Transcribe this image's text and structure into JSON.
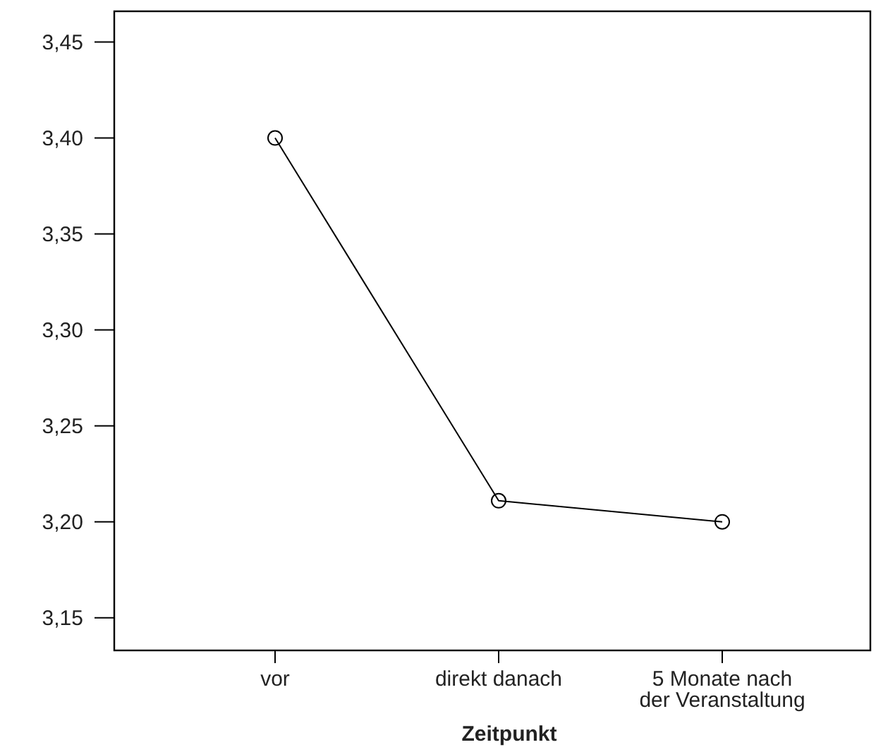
{
  "chart_data": {
    "type": "line",
    "xlabel": "Zeitpunkt",
    "categories": [
      "vor",
      "direkt danach",
      "5 Monate nach\nder Veranstaltung"
    ],
    "series": [
      {
        "color": "#000000",
        "values": [
          3.4,
          3.211,
          3.2
        ]
      }
    ],
    "ylim": [
      3.133,
      3.466
    ],
    "yticks": [
      {
        "value": 3.15,
        "label": "3,15"
      },
      {
        "value": 3.2,
        "label": "3,20"
      },
      {
        "value": 3.25,
        "label": "3,25"
      },
      {
        "value": 3.3,
        "label": "3,30"
      },
      {
        "value": 3.35,
        "label": "3,35"
      },
      {
        "value": 3.4,
        "label": "3,40"
      },
      {
        "value": 3.45,
        "label": "3,45"
      }
    ],
    "marker": "circle",
    "grid": false
  }
}
